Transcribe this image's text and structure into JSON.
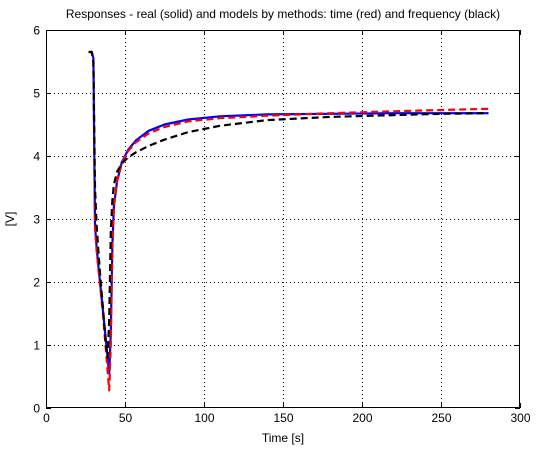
{
  "chart_data": {
    "type": "line",
    "title": "Responses - real (solid) and models by methods: time (red) and frequency (black)",
    "xlabel": "Time [s]",
    "ylabel": "[V]",
    "xlim": [
      0,
      300
    ],
    "ylim": [
      0,
      6
    ],
    "xticks": [
      "0",
      "50",
      "100",
      "150",
      "200",
      "250",
      "300"
    ],
    "yticks": [
      "0",
      "1",
      "2",
      "3",
      "4",
      "5",
      "6"
    ],
    "grid": true,
    "series": [
      {
        "color": "#0000ff",
        "style": "solid",
        "x": [
          27,
          29,
          30,
          31,
          32,
          33,
          35,
          37,
          39,
          40,
          41,
          42,
          43,
          45,
          48,
          52,
          57,
          65,
          75,
          90,
          110,
          140,
          180,
          220,
          250,
          280
        ],
        "y": [
          5.65,
          5.65,
          5.55,
          2.9,
          2.55,
          2.3,
          1.8,
          1.3,
          0.8,
          0.55,
          1.2,
          2.6,
          3.2,
          3.6,
          3.9,
          4.1,
          4.25,
          4.4,
          4.5,
          4.58,
          4.63,
          4.66,
          4.67,
          4.68,
          4.68,
          4.68
        ]
      },
      {
        "color": "#ff0000",
        "style": "dashed",
        "x": [
          27,
          29,
          30,
          31,
          32,
          34,
          36,
          38,
          40,
          41,
          42,
          43,
          45,
          48,
          52,
          57,
          65,
          75,
          90,
          110,
          140,
          180,
          220,
          250,
          280
        ],
        "y": [
          5.65,
          5.65,
          5.5,
          2.9,
          2.5,
          2.0,
          1.5,
          0.9,
          0.28,
          1.0,
          2.6,
          3.2,
          3.6,
          3.88,
          4.08,
          4.22,
          4.36,
          4.46,
          4.55,
          4.6,
          4.64,
          4.68,
          4.71,
          4.73,
          4.75
        ]
      },
      {
        "color": "#000000",
        "style": "dashed",
        "x": [
          27,
          29,
          30,
          31,
          32,
          34,
          36,
          38,
          39,
          40,
          41,
          42,
          43,
          45,
          48,
          52,
          57,
          65,
          75,
          90,
          110,
          140,
          180,
          220,
          250,
          280
        ],
        "y": [
          5.65,
          5.65,
          5.5,
          3.5,
          2.9,
          2.2,
          1.6,
          1.0,
          0.8,
          1.4,
          2.8,
          3.3,
          3.55,
          3.75,
          3.88,
          3.98,
          4.06,
          4.16,
          4.26,
          4.38,
          4.48,
          4.57,
          4.62,
          4.65,
          4.67,
          4.68
        ]
      }
    ]
  }
}
